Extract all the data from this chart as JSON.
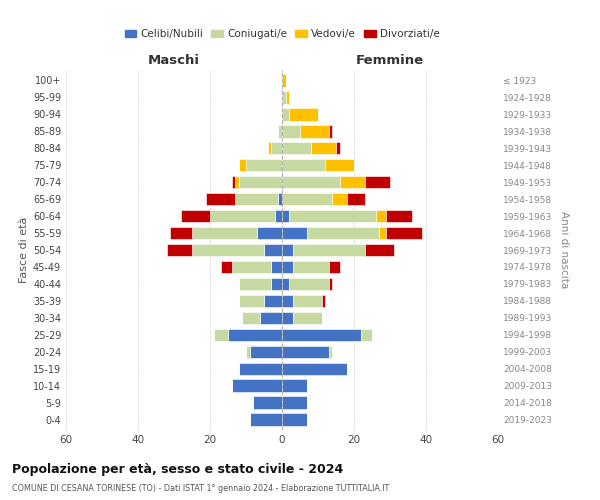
{
  "age_groups": [
    "0-4",
    "5-9",
    "10-14",
    "15-19",
    "20-24",
    "25-29",
    "30-34",
    "35-39",
    "40-44",
    "45-49",
    "50-54",
    "55-59",
    "60-64",
    "65-69",
    "70-74",
    "75-79",
    "80-84",
    "85-89",
    "90-94",
    "95-99",
    "100+"
  ],
  "birth_years": [
    "2019-2023",
    "2014-2018",
    "2009-2013",
    "2004-2008",
    "1999-2003",
    "1994-1998",
    "1989-1993",
    "1984-1988",
    "1979-1983",
    "1974-1978",
    "1969-1973",
    "1964-1968",
    "1959-1963",
    "1954-1958",
    "1949-1953",
    "1944-1948",
    "1939-1943",
    "1934-1938",
    "1929-1933",
    "1924-1928",
    "≤ 1923"
  ],
  "male": {
    "celibi": [
      9,
      8,
      14,
      12,
      9,
      15,
      6,
      5,
      3,
      3,
      5,
      7,
      2,
      1,
      0,
      0,
      0,
      0,
      0,
      0,
      0
    ],
    "coniugati": [
      0,
      0,
      0,
      0,
      1,
      4,
      5,
      7,
      9,
      11,
      20,
      18,
      18,
      12,
      12,
      10,
      3,
      1,
      0,
      0,
      0
    ],
    "vedovi": [
      0,
      0,
      0,
      0,
      0,
      0,
      0,
      0,
      0,
      0,
      0,
      0,
      0,
      0,
      1,
      2,
      1,
      0,
      0,
      0,
      0
    ],
    "divorziati": [
      0,
      0,
      0,
      0,
      0,
      0,
      0,
      0,
      0,
      3,
      7,
      6,
      8,
      8,
      1,
      0,
      0,
      0,
      0,
      0,
      0
    ]
  },
  "female": {
    "nubili": [
      7,
      7,
      7,
      18,
      13,
      22,
      3,
      3,
      2,
      3,
      3,
      7,
      2,
      0,
      0,
      0,
      0,
      0,
      0,
      0,
      0
    ],
    "coniugate": [
      0,
      0,
      0,
      0,
      1,
      3,
      8,
      8,
      11,
      10,
      20,
      20,
      24,
      14,
      16,
      12,
      8,
      5,
      2,
      1,
      0
    ],
    "vedove": [
      0,
      0,
      0,
      0,
      0,
      0,
      0,
      0,
      0,
      0,
      0,
      2,
      3,
      4,
      7,
      8,
      7,
      8,
      8,
      1,
      1
    ],
    "divorziate": [
      0,
      0,
      0,
      0,
      0,
      0,
      0,
      1,
      1,
      3,
      8,
      10,
      7,
      5,
      7,
      0,
      1,
      1,
      0,
      0,
      0
    ]
  },
  "colors": {
    "celibi": "#4472c4",
    "coniugati": "#c5d9a0",
    "vedovi": "#ffc000",
    "divorziati": "#c00000"
  },
  "title": "Popolazione per età, sesso e stato civile - 2024",
  "subtitle": "COMUNE DI CESANA TORINESE (TO) - Dati ISTAT 1° gennaio 2024 - Elaborazione TUTTITALIA.IT",
  "xlabel_left": "Maschi",
  "xlabel_right": "Femmine",
  "ylabel_left": "Fasce di età",
  "ylabel_right": "Anni di nascita",
  "xlim": 60,
  "background_color": "#ffffff",
  "grid_color": "#cccccc"
}
